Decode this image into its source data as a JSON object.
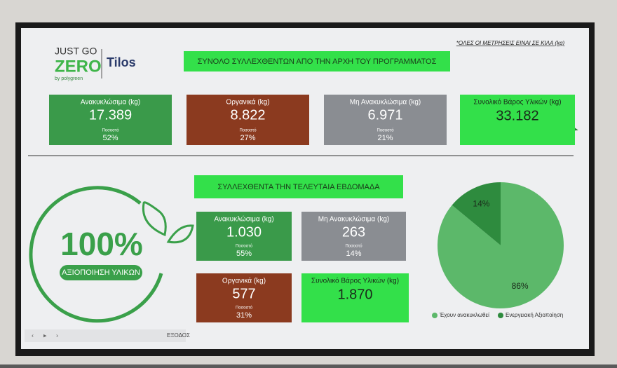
{
  "logo": {
    "line1": "JUST GO",
    "line2": "ZERO",
    "by": "by polygreen",
    "place": "Tilos"
  },
  "note": "*ΟΛΕΣ ΟΙ ΜΕΤΡΗΣΕΙΣ ΕΙΝΑΙ ΣΕ ΚΙΛΑ (kg)",
  "total_section": {
    "title": "ΣΥΝΟΛΟ ΣΥΛΛΕΧΘΕΝΤΩΝ ΑΠΟ ΤΗΝ ΑΡΧΗ ΤΟΥ ΠΡΟΓΡΑΜΜΑΤΟΣ",
    "cards": [
      {
        "label": "Ανακυκλώσιμα (kg)",
        "value": "17.389",
        "share_label": "Ποσοστό",
        "share": "52%"
      },
      {
        "label": "Οργανικά (kg)",
        "value": "8.822",
        "share_label": "Ποσοστό",
        "share": "27%"
      },
      {
        "label": "Μη Ανακυκλώσιμα (kg)",
        "value": "6.971",
        "share_label": "Ποσοστό",
        "share": "21%"
      },
      {
        "label": "Συνολικό Βάρος Υλικών (kg)",
        "value": "33.182"
      }
    ]
  },
  "week_section": {
    "title": "ΣΥΛΛΕΧΘΕΝΤΑ ΤΗΝ ΤΕΛΕΥΤΑΙΑ ΕΒΔΟΜΑΔΑ",
    "cards": [
      {
        "label": "Ανακυκλώσιμα (kg)",
        "value": "1.030",
        "share_label": "Ποσοστό",
        "share": "55%"
      },
      {
        "label": "Μη Ανακυκλώσιμα (kg)",
        "value": "263",
        "share_label": "Ποσοστό",
        "share": "14%"
      },
      {
        "label": "Οργανικά (kg)",
        "value": "577",
        "share_label": "Ποσοστό",
        "share": "31%"
      },
      {
        "label": "Συνολικό Βάρος Υλικών (kg)",
        "value": "1.870"
      }
    ]
  },
  "badge": {
    "value": "100%",
    "label": "ΑΞΙΟΠΟΙΗΣΗ ΥΛΙΚΩΝ"
  },
  "pie": {
    "type": "pie",
    "categories": [
      "Έχουν ανακυκλωθεί",
      "Ενεργειακή Αξιοποίηση"
    ],
    "values": [
      86,
      14
    ],
    "value_labels": [
      "86%",
      "14%"
    ],
    "colors": [
      "#5cb86a",
      "#2e8b3e"
    ]
  },
  "toolbar": {
    "exit": "ΕΞΟΔΟΣ"
  }
}
